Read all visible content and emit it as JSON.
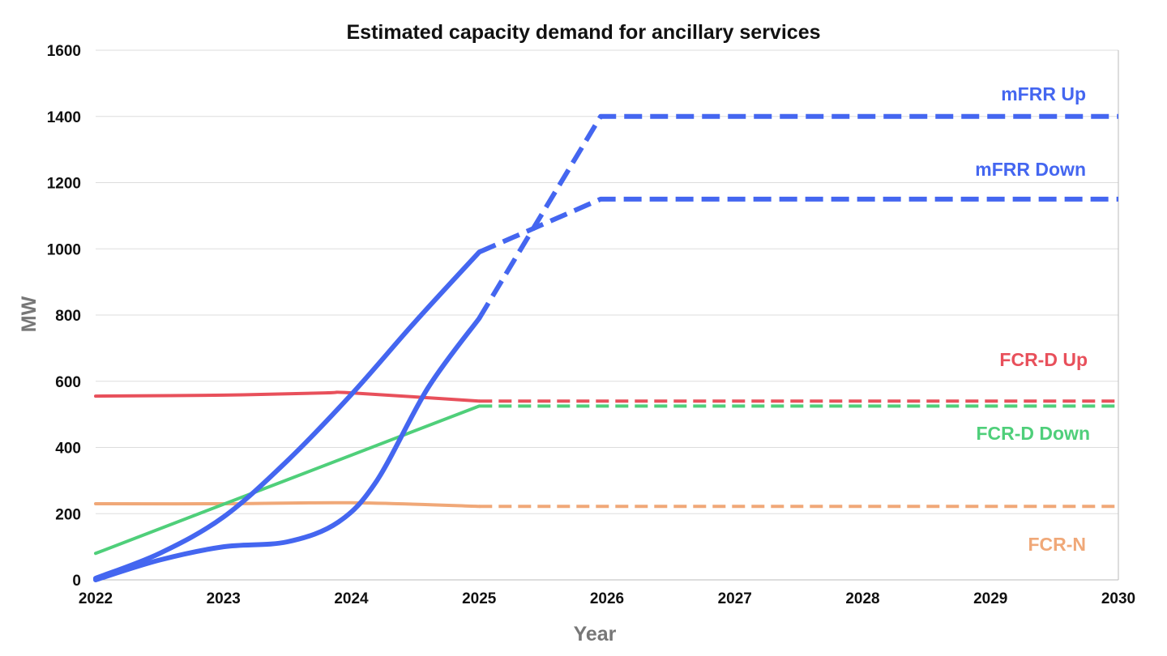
{
  "chart_data": {
    "type": "line",
    "title": "Estimated capacity demand for ancillary services",
    "xlabel": "Year",
    "ylabel": "MW",
    "xlim": [
      2022,
      2030
    ],
    "ylim": [
      0,
      1600
    ],
    "x_ticks": [
      "2022",
      "2023",
      "2024",
      "2025",
      "2026",
      "2027",
      "2028",
      "2029",
      "2030"
    ],
    "y_ticks": [
      "0",
      "200",
      "400",
      "600",
      "800",
      "1000",
      "1200",
      "1400",
      "1600"
    ],
    "grid": true,
    "series": [
      {
        "name": "mFRR Up",
        "color": "#4466f0",
        "actual": [
          [
            2022,
            0
          ],
          [
            2022.5,
            60
          ],
          [
            2023,
            100
          ],
          [
            2023.5,
            115
          ],
          [
            2023.9,
            175
          ],
          [
            2024.2,
            300
          ],
          [
            2024.6,
            580
          ],
          [
            2025,
            790
          ]
        ],
        "projected": [
          [
            2025,
            790
          ],
          [
            2025.95,
            1400
          ],
          [
            2030,
            1400
          ]
        ]
      },
      {
        "name": "mFRR Down",
        "color": "#4466f0",
        "actual": [
          [
            2022,
            5
          ],
          [
            2022.5,
            80
          ],
          [
            2023,
            190
          ],
          [
            2023.5,
            360
          ],
          [
            2024,
            560
          ],
          [
            2024.5,
            780
          ],
          [
            2025,
            990
          ]
        ],
        "projected": [
          [
            2025,
            990
          ],
          [
            2025.95,
            1150
          ],
          [
            2030,
            1150
          ]
        ]
      },
      {
        "name": "FCR-D Up",
        "color": "#e8505b",
        "actual": [
          [
            2022,
            555
          ],
          [
            2023,
            558
          ],
          [
            2023.8,
            565
          ],
          [
            2024,
            565
          ],
          [
            2025,
            540
          ]
        ],
        "projected": [
          [
            2025,
            540
          ],
          [
            2030,
            540
          ]
        ]
      },
      {
        "name": "FCR-D Down",
        "color": "#4fcf7a",
        "actual": [
          [
            2022,
            80
          ],
          [
            2025,
            525
          ]
        ],
        "projected": [
          [
            2025,
            525
          ],
          [
            2030,
            525
          ]
        ]
      },
      {
        "name": "FCR-N",
        "color": "#f0a878",
        "actual": [
          [
            2022,
            230
          ],
          [
            2023,
            230
          ],
          [
            2024,
            233
          ],
          [
            2025,
            222
          ]
        ],
        "projected": [
          [
            2025,
            222
          ],
          [
            2030,
            222
          ]
        ]
      }
    ]
  }
}
